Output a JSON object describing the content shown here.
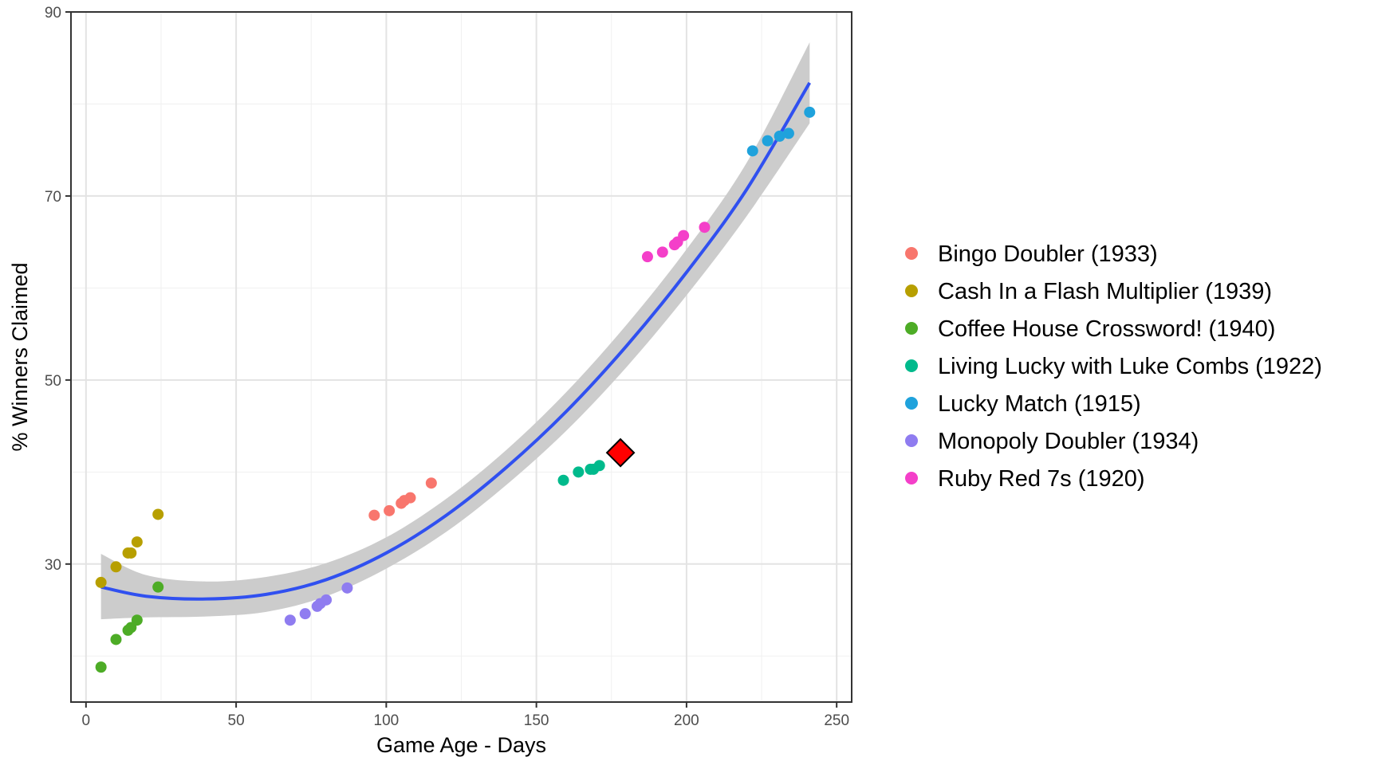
{
  "chart_data": {
    "type": "scatter",
    "xlabel": "Game Age - Days",
    "ylabel": "% Winners Claimed",
    "xlim": [
      -5,
      255
    ],
    "ylim": [
      15,
      90
    ],
    "x_ticks": [
      0,
      50,
      100,
      150,
      200,
      250
    ],
    "y_ticks": [
      30,
      50,
      70,
      90
    ],
    "grid": true,
    "legend_position": "right",
    "series": [
      {
        "name": "Bingo Doubler (1933)",
        "color": "#F8766D",
        "x": [
          96,
          101,
          105,
          106,
          108,
          115
        ],
        "y": [
          35.3,
          35.8,
          36.6,
          36.9,
          37.2,
          38.8
        ]
      },
      {
        "name": "Cash In a Flash Multiplier (1939)",
        "color": "#B79F00",
        "x": [
          5,
          10,
          14,
          15,
          17,
          24
        ],
        "y": [
          28.0,
          29.7,
          31.2,
          31.2,
          32.4,
          35.4
        ]
      },
      {
        "name": "Coffee House Crossword! (1940)",
        "color": "#4DAC26",
        "x": [
          5,
          10,
          14,
          15,
          17,
          24
        ],
        "y": [
          18.8,
          21.8,
          22.8,
          23.1,
          23.9,
          27.5
        ]
      },
      {
        "name": "Living Lucky with Luke Combs (1922)",
        "color": "#00BA8C",
        "x": [
          159,
          164,
          168,
          169,
          171
        ],
        "y": [
          39.1,
          40.0,
          40.3,
          40.3,
          40.7
        ]
      },
      {
        "name": "Lucky Match (1915)",
        "color": "#1FA2DC",
        "x": [
          222,
          227,
          231,
          234,
          241
        ],
        "y": [
          74.9,
          76.0,
          76.5,
          76.8,
          79.1
        ]
      },
      {
        "name": "Monopoly Doubler (1934)",
        "color": "#8F7CF0",
        "x": [
          68,
          73,
          77,
          78,
          80,
          87
        ],
        "y": [
          23.9,
          24.6,
          25.4,
          25.7,
          26.1,
          27.4
        ]
      },
      {
        "name": "Ruby Red 7s (1920)",
        "color": "#F43FC9",
        "x": [
          187,
          192,
          196,
          197,
          199,
          206
        ],
        "y": [
          63.4,
          63.9,
          64.7,
          65.0,
          65.7,
          66.6
        ]
      }
    ],
    "trend": {
      "color": "#3050F0",
      "band_color": "#CCCCCC",
      "x": [
        5,
        20,
        40,
        60,
        80,
        100,
        120,
        140,
        160,
        180,
        200,
        220,
        241
      ],
      "y": [
        27.5,
        26.5,
        26.2,
        26.7,
        28.3,
        31.2,
        35.3,
        40.5,
        46.6,
        53.7,
        61.7,
        70.7,
        82.3
      ],
      "lower": [
        24.0,
        24.2,
        24.3,
        24.8,
        26.5,
        29.5,
        33.5,
        38.6,
        44.5,
        51.4,
        59.2,
        67.8,
        77.9
      ],
      "upper": [
        31.1,
        28.8,
        28.1,
        28.6,
        30.1,
        32.9,
        37.1,
        42.4,
        48.7,
        56.0,
        64.2,
        73.6,
        86.7
      ]
    },
    "highlight_point": {
      "x": 178,
      "y": 42.1,
      "shape": "diamond",
      "color": "#FF0000"
    }
  }
}
